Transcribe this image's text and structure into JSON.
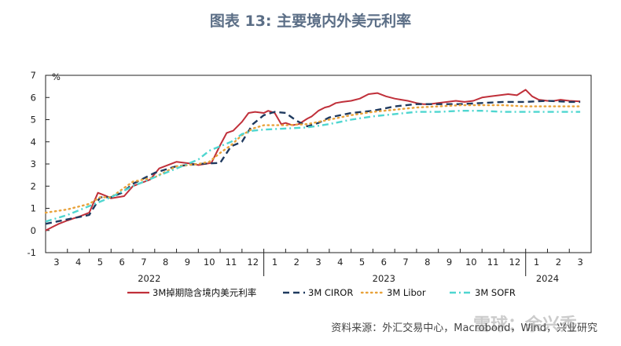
{
  "title": "图表 13: 主要境内外美元利率",
  "source": "资料来源：外汇交易中心，Macrobond，Wind，兴业研究",
  "watermark": "雪球：余兴秀",
  "colors": {
    "implied": "#c0303a",
    "ciror": "#1f3a5f",
    "libor": "#e8a23a",
    "sofr": "#4fd6d0"
  },
  "chart_data": {
    "type": "line",
    "title": "图表 13: 主要境内外美元利率",
    "ylabel": "%",
    "ylim": [
      -1,
      7
    ],
    "yticks": [
      "-1",
      "0",
      "1",
      "2",
      "3",
      "4",
      "5",
      "6",
      "7"
    ],
    "xlim": [
      0,
      25
    ],
    "month_labels": [
      "3",
      "4",
      "5",
      "6",
      "7",
      "8",
      "9",
      "10",
      "11",
      "12",
      "1",
      "2",
      "3",
      "4",
      "5",
      "6",
      "7",
      "8",
      "9",
      "10",
      "11",
      "12",
      "1",
      "2",
      "3"
    ],
    "year_labels": [
      {
        "label": "2022",
        "pos": 4.75
      },
      {
        "label": "2023",
        "pos": 15.5
      },
      {
        "label": "2024",
        "pos": 23.0
      }
    ],
    "series": [
      {
        "name": "3M掉期隐含境内美元利率",
        "style": "solid",
        "color": "#c0303a",
        "x": [
          0,
          0.3,
          0.6,
          1,
          1.3,
          1.6,
          2,
          2.4,
          2.8,
          3,
          3.3,
          3.6,
          4,
          4.4,
          4.8,
          5.2,
          5.6,
          6,
          6.4,
          6.8,
          7,
          7.3,
          7.6,
          8,
          8.3,
          8.6,
          9,
          9.3,
          9.6,
          10,
          10.2,
          10.5,
          10.8,
          11,
          11.3,
          11.6,
          12,
          12.2,
          12.5,
          12.8,
          13,
          13.3,
          13.6,
          14,
          14.4,
          14.8,
          15.2,
          15.6,
          16,
          16.3,
          16.6,
          17,
          17.3,
          17.6,
          18,
          18.4,
          18.8,
          19.2,
          19.6,
          20,
          20.4,
          20.8,
          21.2,
          21.6,
          22,
          22.3,
          22.6,
          23,
          23.3,
          23.6,
          24,
          24.5
        ],
        "values": [
          0.0,
          0.15,
          0.3,
          0.45,
          0.55,
          0.65,
          0.8,
          1.7,
          1.55,
          1.45,
          1.5,
          1.55,
          2.0,
          2.15,
          2.3,
          2.8,
          2.95,
          3.1,
          3.05,
          3.0,
          2.95,
          3.0,
          3.05,
          3.85,
          4.4,
          4.5,
          4.9,
          5.3,
          5.35,
          5.3,
          5.4,
          5.3,
          4.8,
          4.85,
          4.75,
          4.8,
          5.05,
          5.15,
          5.4,
          5.55,
          5.6,
          5.75,
          5.8,
          5.85,
          5.95,
          6.15,
          6.2,
          6.05,
          5.95,
          5.9,
          5.85,
          5.75,
          5.7,
          5.7,
          5.75,
          5.8,
          5.85,
          5.8,
          5.85,
          6.0,
          6.05,
          6.1,
          6.15,
          6.1,
          6.35,
          6.05,
          5.9,
          5.85,
          5.85,
          5.9,
          5.85,
          5.82
        ]
      },
      {
        "name": "3M CIROR",
        "style": "dash",
        "color": "#1f3a5f",
        "x": [
          0,
          1,
          2,
          2.5,
          3,
          3.5,
          4,
          5,
          6,
          7,
          8,
          8.5,
          9,
          9.5,
          10,
          10.5,
          11,
          11.5,
          12,
          12.5,
          13,
          14,
          15,
          16,
          17,
          18,
          19,
          20,
          21,
          22,
          23,
          24,
          24.5
        ],
        "values": [
          0.3,
          0.5,
          0.7,
          1.5,
          1.5,
          1.7,
          2.1,
          2.6,
          2.9,
          3.0,
          3.05,
          3.8,
          4.0,
          4.8,
          5.2,
          5.35,
          5.3,
          4.95,
          4.7,
          4.85,
          5.1,
          5.3,
          5.4,
          5.6,
          5.7,
          5.7,
          5.7,
          5.75,
          5.8,
          5.8,
          5.85,
          5.8,
          5.8
        ]
      },
      {
        "name": "3M Libor",
        "style": "dot",
        "color": "#e8a23a",
        "x": [
          0,
          1,
          2,
          2.5,
          3,
          4,
          5,
          6,
          7,
          7.5,
          8,
          8.5,
          9,
          9.5,
          10,
          10.5,
          11,
          12,
          13,
          14,
          15,
          16,
          17,
          18,
          19,
          20,
          21,
          22,
          23,
          24,
          24.5
        ],
        "values": [
          0.8,
          0.95,
          1.2,
          1.5,
          1.5,
          2.2,
          2.4,
          2.9,
          3.0,
          3.1,
          3.5,
          3.85,
          4.3,
          4.6,
          4.75,
          4.75,
          4.75,
          4.8,
          5.0,
          5.2,
          5.35,
          5.45,
          5.55,
          5.6,
          5.65,
          5.65,
          5.65,
          5.6,
          5.6,
          5.6,
          5.6
        ]
      },
      {
        "name": "3M SOFR",
        "style": "dashdot",
        "color": "#4fd6d0",
        "x": [
          0,
          1,
          2,
          3,
          4,
          5,
          6,
          7,
          7.5,
          8,
          8.5,
          9,
          9.5,
          10,
          11,
          12,
          13,
          14,
          15,
          16,
          17,
          18,
          19,
          20,
          21,
          22,
          23,
          24,
          24.5
        ],
        "values": [
          0.4,
          0.7,
          1.1,
          1.5,
          2.0,
          2.4,
          2.8,
          3.2,
          3.6,
          3.8,
          4.0,
          4.35,
          4.5,
          4.55,
          4.6,
          4.65,
          4.8,
          5.0,
          5.15,
          5.25,
          5.35,
          5.35,
          5.4,
          5.4,
          5.35,
          5.35,
          5.35,
          5.35,
          5.35
        ]
      }
    ]
  }
}
